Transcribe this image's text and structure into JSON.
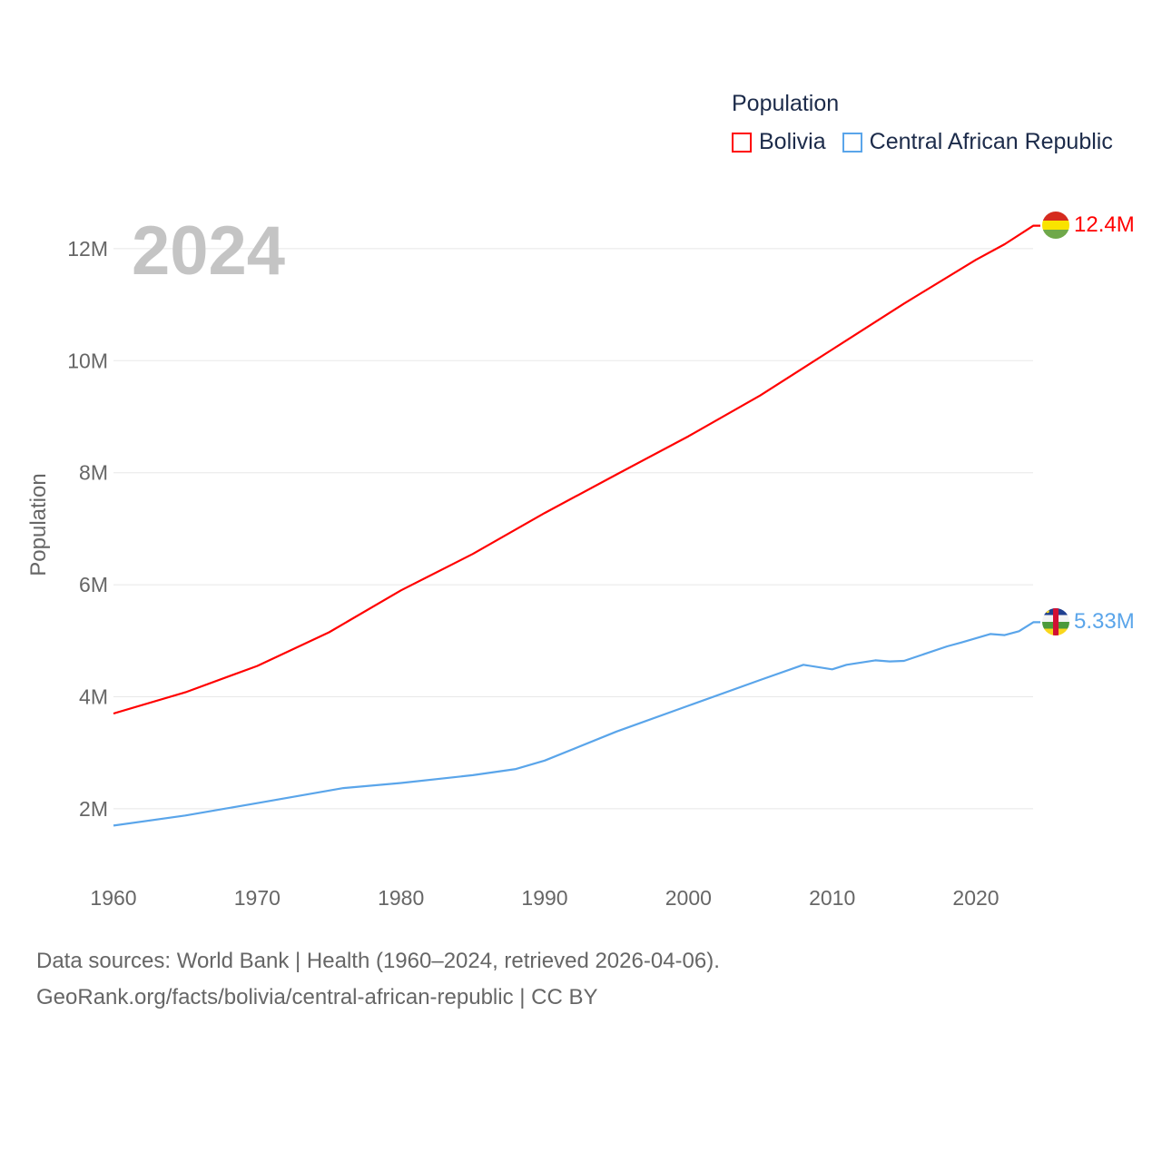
{
  "chart_data": {
    "type": "line",
    "title": "",
    "year_label": "2024",
    "xlabel": "",
    "ylabel": "Population",
    "xlim": [
      1960,
      2024
    ],
    "ylim": [
      0,
      13000000
    ],
    "x_ticks": [
      1960,
      1970,
      1980,
      1990,
      2000,
      2010,
      2020
    ],
    "y_ticks": [
      {
        "v": 2000000,
        "label": "2M"
      },
      {
        "v": 4000000,
        "label": "4M"
      },
      {
        "v": 6000000,
        "label": "6M"
      },
      {
        "v": 8000000,
        "label": "8M"
      },
      {
        "v": 10000000,
        "label": "10M"
      },
      {
        "v": 12000000,
        "label": "12M"
      }
    ],
    "grid": true,
    "legend": {
      "title": "Population",
      "placement": "top-right"
    },
    "series": [
      {
        "name": "Bolivia",
        "color": "#ff0000",
        "end_label": "12.4M",
        "x": [
          1960,
          1965,
          1970,
          1975,
          1980,
          1985,
          1990,
          1995,
          2000,
          2005,
          2010,
          2015,
          2020,
          2022,
          2024
        ],
        "values": [
          3700000,
          4080000,
          4550000,
          5150000,
          5900000,
          6550000,
          7280000,
          7970000,
          8650000,
          9380000,
          10200000,
          11020000,
          11800000,
          12080000,
          12410000
        ]
      },
      {
        "name": "Central African Republic",
        "color": "#5aa5ea",
        "end_label": "5.33M",
        "x": [
          1960,
          1965,
          1970,
          1976,
          1980,
          1985,
          1988,
          1990,
          1995,
          2000,
          2005,
          2008,
          2010,
          2011,
          2013,
          2014,
          2015,
          2018,
          2019,
          2021,
          2022,
          2023,
          2024
        ],
        "values": [
          1700000,
          1880000,
          2100000,
          2370000,
          2460000,
          2600000,
          2710000,
          2860000,
          3380000,
          3840000,
          4300000,
          4570000,
          4490000,
          4570000,
          4650000,
          4630000,
          4640000,
          4900000,
          4970000,
          5120000,
          5100000,
          5170000,
          5330000
        ]
      }
    ]
  },
  "footer": {
    "line1": "Data sources: World Bank | Health (1960–2024, retrieved 2026-04-06).",
    "line2": "GeoRank.org/facts/bolivia/central-african-republic | CC BY"
  }
}
